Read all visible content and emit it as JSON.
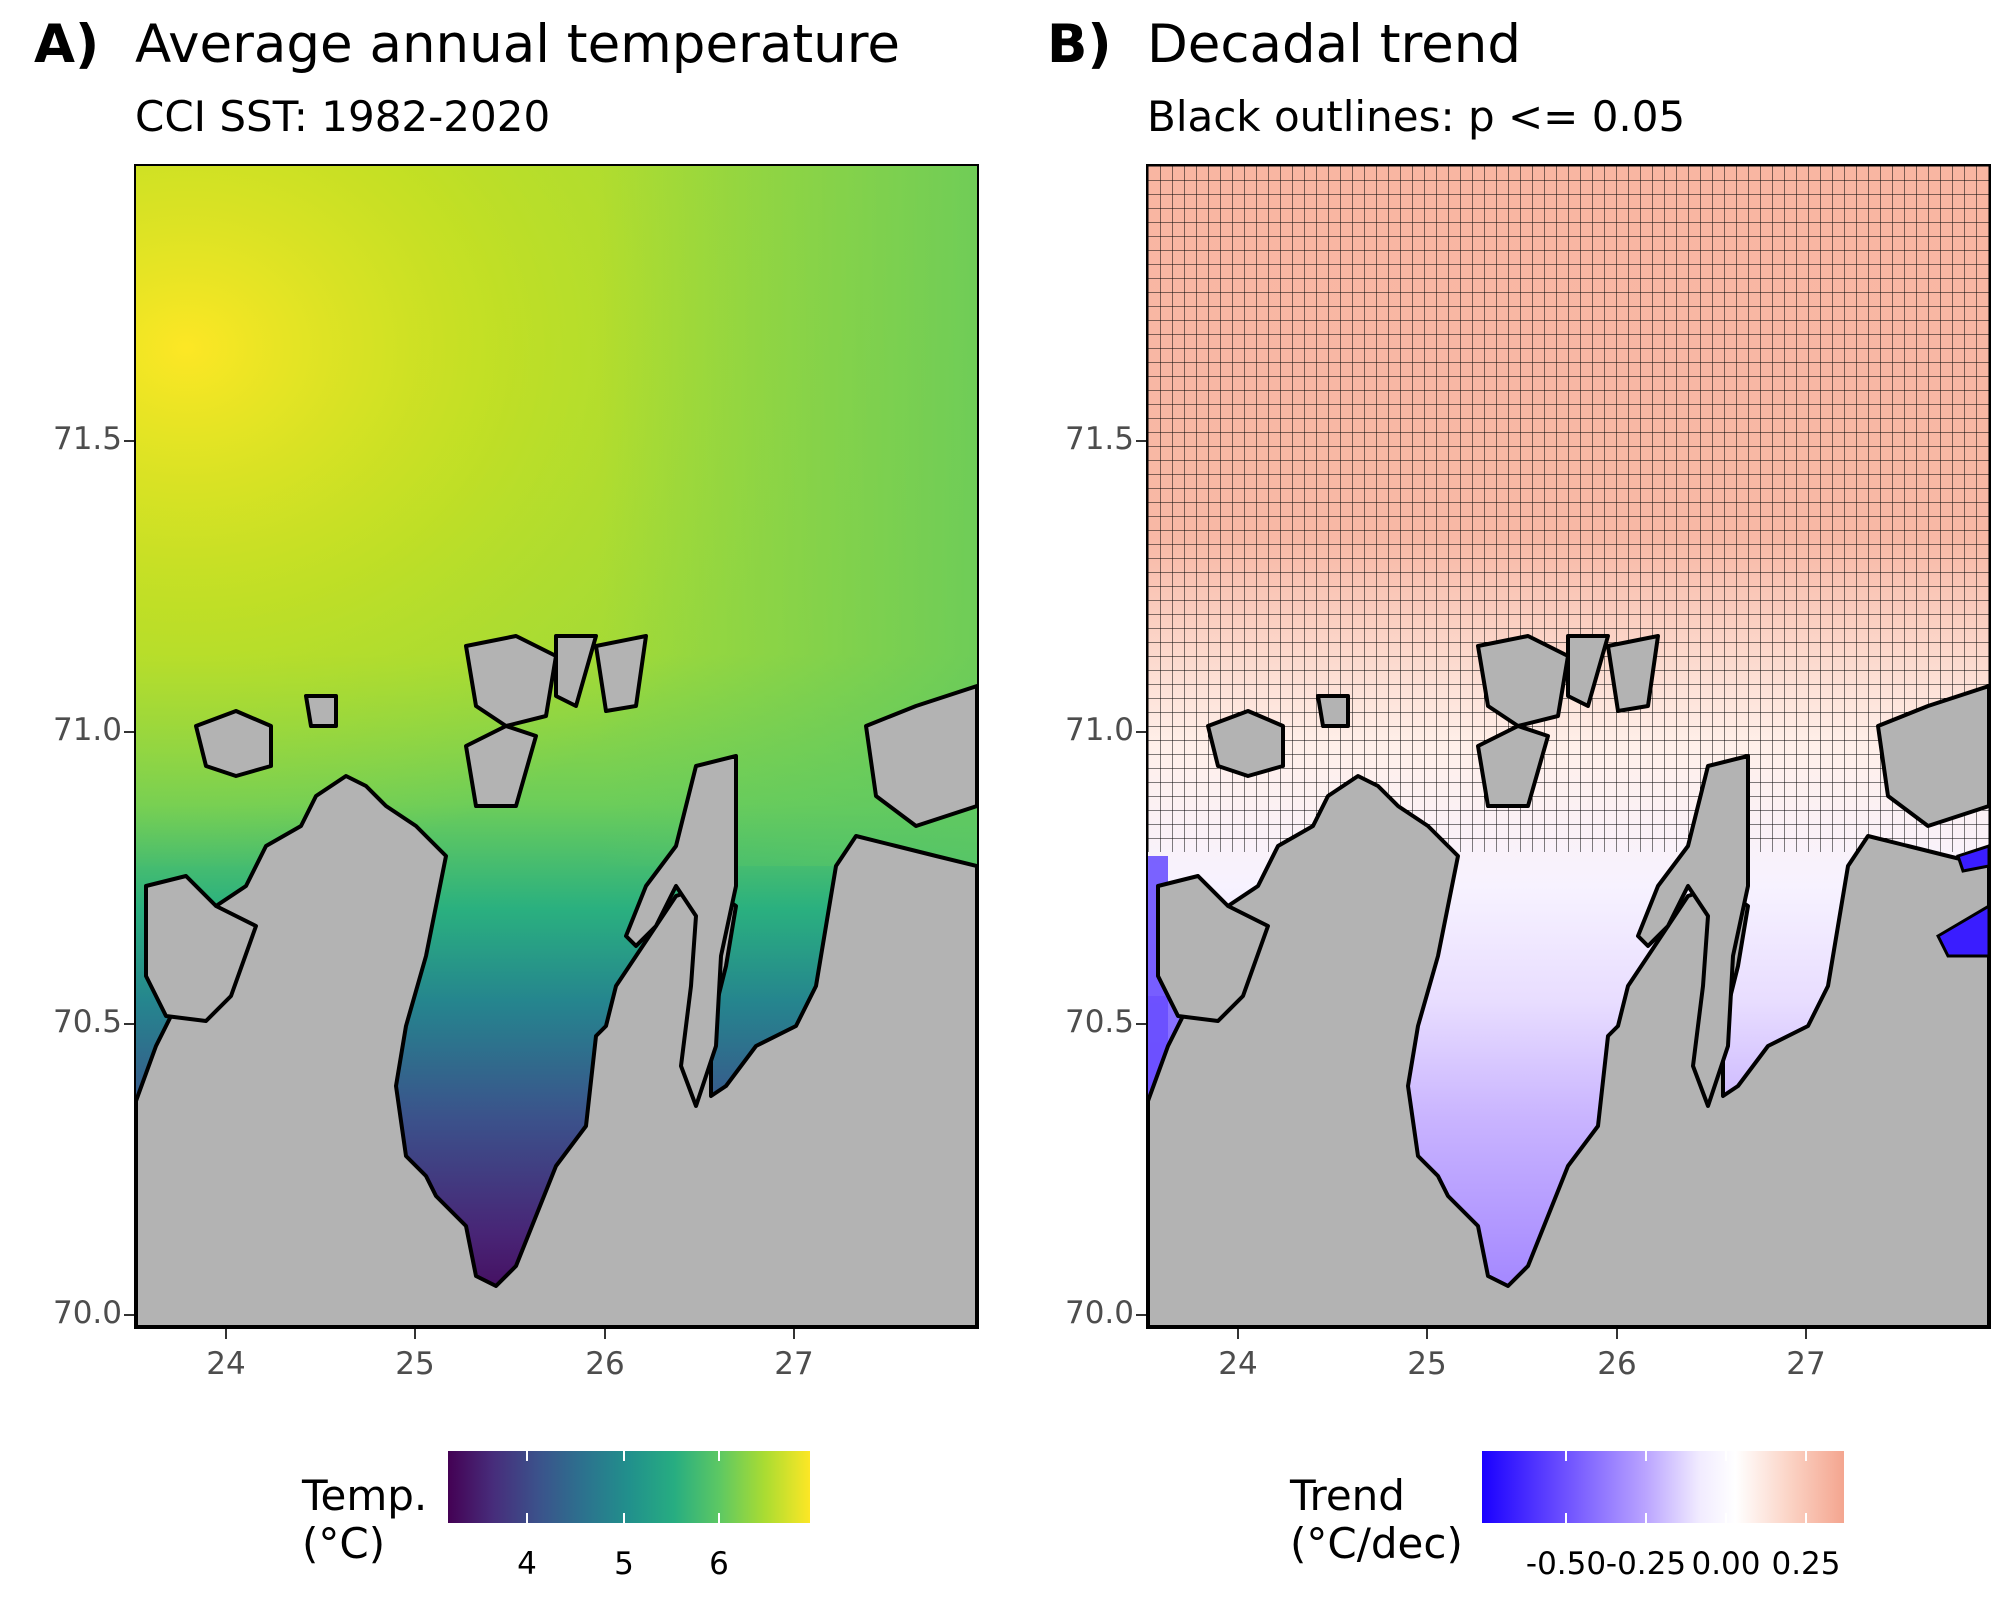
{
  "panel_a": {
    "tag": "A)",
    "title": "Average annual temperature",
    "subtitle": "CCI SST: 1982-2020",
    "legend_title_line1": "Temp.",
    "legend_title_line2": "(°C)",
    "legend_labels": [
      "4",
      "5",
      "6"
    ],
    "palette": [
      "#440154",
      "#3b528b",
      "#21908c",
      "#5dc863",
      "#fde725"
    ]
  },
  "panel_b": {
    "tag": "B)",
    "title": "Decadal trend",
    "subtitle": "Black outlines: p <= 0.05",
    "legend_title_line1": "Trend",
    "legend_title_line2": "(°C/dec)",
    "legend_labels": [
      "-0.50",
      "-0.25",
      "0.00",
      "0.25"
    ],
    "palette": [
      "#1a00ff",
      "#7f5fff",
      "#d9ccff",
      "#ffffff",
      "#f4a58f"
    ]
  },
  "axes": {
    "x_ticks": [
      "24",
      "25",
      "26",
      "27"
    ],
    "y_ticks": [
      "71.5",
      "71.0",
      "70.5",
      "70.0"
    ]
  },
  "colors": {
    "land": "#b3b3b3",
    "coast": "#000000"
  },
  "chart_data": {
    "type": "heatmap",
    "xlim": [
      23.53,
      27.97
    ],
    "ylim": [
      69.98,
      71.97
    ],
    "x_ticks": [
      24,
      25,
      26,
      27
    ],
    "y_ticks": [
      70.0,
      70.5,
      71.0,
      71.5
    ]
  }
}
